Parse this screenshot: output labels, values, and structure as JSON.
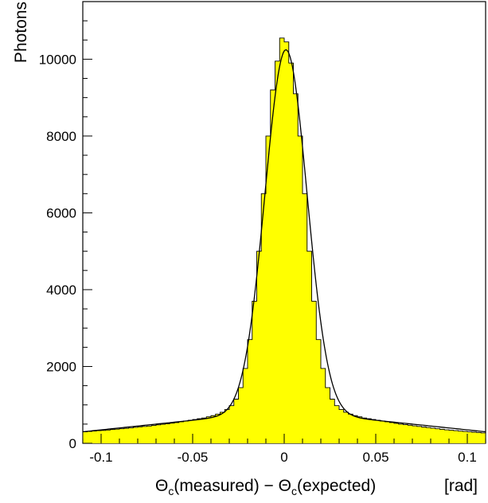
{
  "chart_data": {
    "type": "bar",
    "ylabel": "Photons",
    "xlabel": {
      "theta": "Θ",
      "sub": "c",
      "part1": "(measured) − ",
      "part2": "(expected)",
      "unit": "[rad]"
    },
    "xlim": [
      -0.11,
      0.11
    ],
    "ylim": [
      0,
      11500
    ],
    "x_ticks": [
      {
        "value": -0.1,
        "label": "-0.1"
      },
      {
        "value": -0.05,
        "label": "-0.05"
      },
      {
        "value": 0,
        "label": "0"
      },
      {
        "value": 0.05,
        "label": "0.05"
      },
      {
        "value": 0.1,
        "label": "0.1"
      }
    ],
    "y_ticks": [
      {
        "value": 0,
        "label": "0"
      },
      {
        "value": 2000,
        "label": "2000"
      },
      {
        "value": 4000,
        "label": "4000"
      },
      {
        "value": 6000,
        "label": "6000"
      },
      {
        "value": 8000,
        "label": "8000"
      },
      {
        "value": 10000,
        "label": "10000"
      }
    ],
    "histogram": {
      "x_start": -0.11,
      "bin_width": 0.0025,
      "values": [
        300,
        310,
        320,
        330,
        335,
        345,
        360,
        370,
        380,
        390,
        400,
        415,
        430,
        440,
        450,
        465,
        480,
        495,
        510,
        525,
        540,
        560,
        580,
        600,
        620,
        640,
        660,
        690,
        720,
        760,
        810,
        880,
        980,
        1150,
        1450,
        1950,
        2700,
        3700,
        5000,
        6500,
        8000,
        9200,
        9950,
        10550,
        10450,
        9900,
        9100,
        8000,
        6500,
        5000,
        3700,
        2700,
        1950,
        1450,
        1150,
        980,
        880,
        810,
        760,
        720,
        690,
        660,
        640,
        620,
        600,
        580,
        560,
        540,
        520,
        500,
        485,
        470,
        455,
        440,
        425,
        410,
        395,
        380,
        365,
        350,
        340,
        330,
        320,
        310,
        300,
        290,
        280,
        270
      ],
      "fill_color": "#ffff00",
      "line_color": "#000000"
    },
    "fit": {
      "peak": 10100,
      "center": 0.001,
      "sigma": 0.0115,
      "line_color": "#000000"
    }
  }
}
